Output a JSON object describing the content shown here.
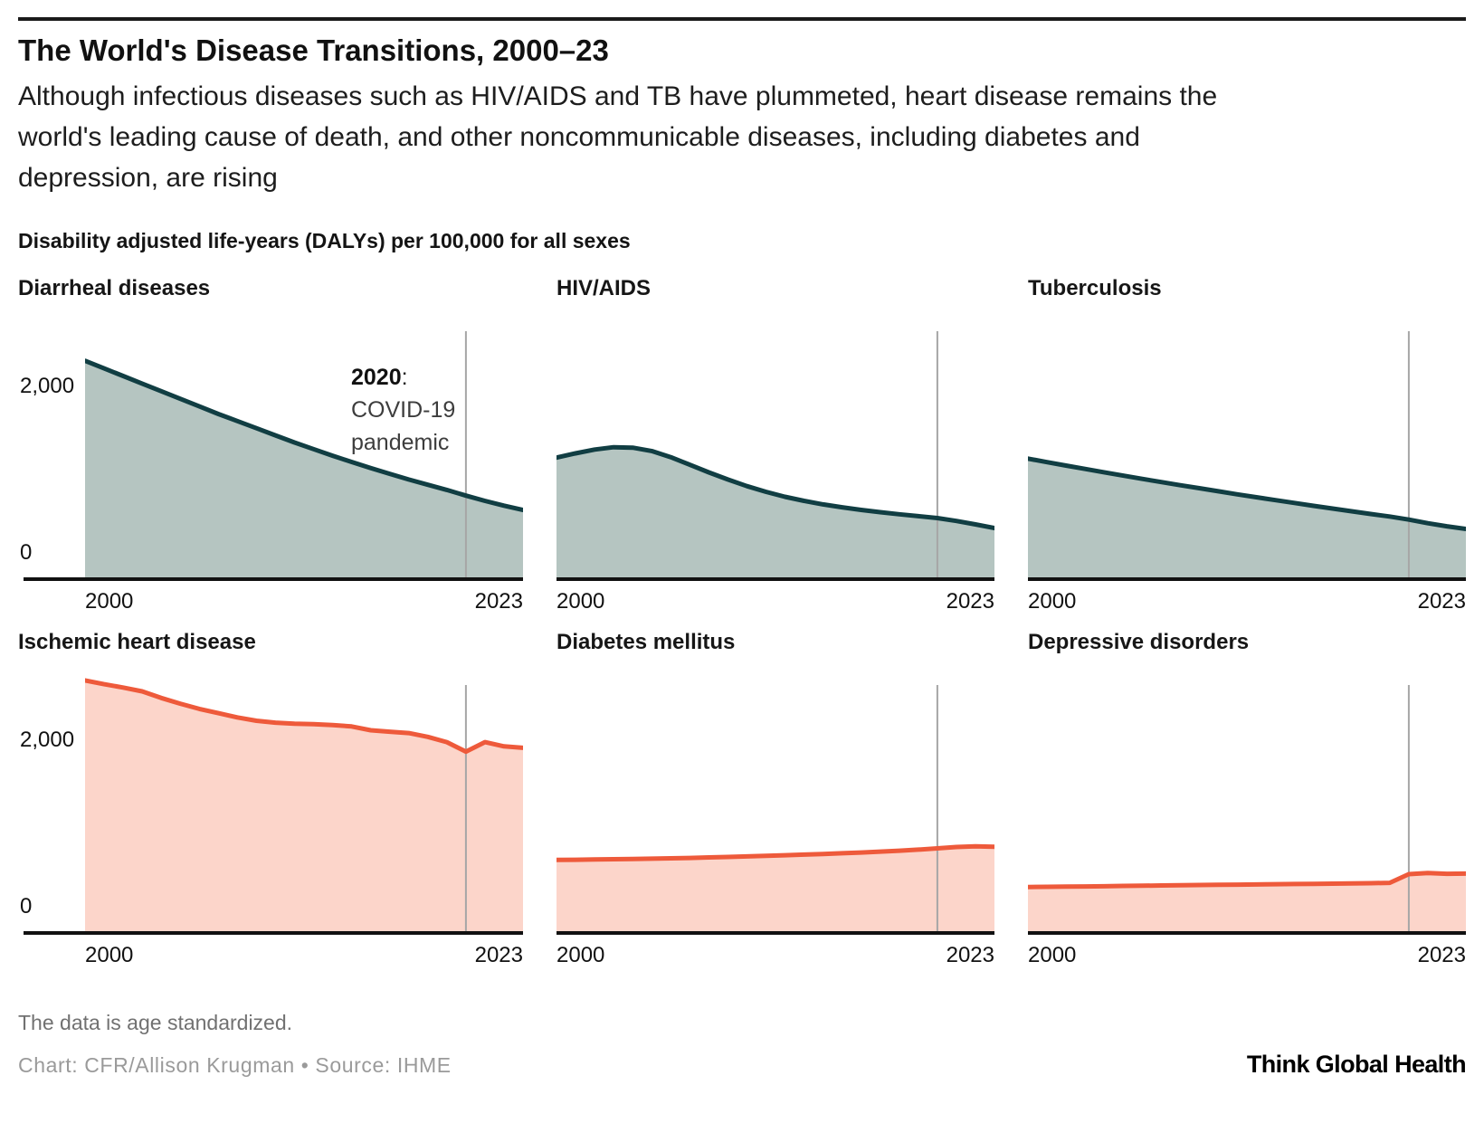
{
  "page": {
    "title": "The World's Disease Transitions, 2000–23",
    "subtitle_lines": [
      "Although infectious diseases such as HIV/AIDS and TB have plummeted, heart disease remains the",
      "world's leading cause of death, and other noncommunicable diseases, including diabetes and",
      "depression, are rising"
    ],
    "units_label": "Disability adjusted life-years (DALYs) per 100,000 for all sexes",
    "footnote": "The data is age standardized.",
    "credit": "Chart: CFR/Allison Krugman • Source: IHME",
    "brand": "Think Global Health"
  },
  "colors": {
    "infectious_line": "#113e43",
    "infectious_fill": "#b5c5c1",
    "ncd_line": "#ee5a3b",
    "ncd_fill": "#fcd5ca",
    "vline": "#a6a6a6",
    "axis": "#111111"
  },
  "annotation": {
    "year_bold": "2020",
    "colon": ":",
    "lines": [
      "COVID-19",
      "pandemic"
    ]
  },
  "axis": {
    "x_start_label": "2000",
    "x_end_label": "2023",
    "y_tick_labels": [
      "2,000",
      "0"
    ],
    "y_tick_values": [
      2000,
      0
    ]
  },
  "chart_data": [
    {
      "type": "area",
      "title": "Diarrheal diseases",
      "ylabel": "DALYs per 100,000",
      "xlim": [
        2000,
        2023
      ],
      "ylim": [
        0,
        2820
      ],
      "vline_year": 2020,
      "line_color": "#113e43",
      "fill_color": "#b5c5c1",
      "x": [
        2000,
        2001,
        2002,
        2003,
        2004,
        2005,
        2006,
        2007,
        2008,
        2009,
        2010,
        2011,
        2012,
        2013,
        2014,
        2015,
        2016,
        2017,
        2018,
        2019,
        2020,
        2021,
        2022,
        2023
      ],
      "values": [
        2280,
        2200,
        2120,
        2040,
        1960,
        1880,
        1800,
        1720,
        1645,
        1570,
        1495,
        1420,
        1350,
        1280,
        1215,
        1150,
        1090,
        1030,
        975,
        920,
        860,
        805,
        755,
        710
      ]
    },
    {
      "type": "area",
      "title": "HIV/AIDS",
      "ylabel": "DALYs per 100,000",
      "xlim": [
        2000,
        2023
      ],
      "ylim": [
        0,
        2820
      ],
      "vline_year": 2020,
      "line_color": "#113e43",
      "fill_color": "#b5c5c1",
      "x": [
        2000,
        2001,
        2002,
        2003,
        2004,
        2005,
        2006,
        2007,
        2008,
        2009,
        2010,
        2011,
        2012,
        2013,
        2014,
        2015,
        2016,
        2017,
        2018,
        2019,
        2020,
        2021,
        2022,
        2023
      ],
      "values": [
        1260,
        1305,
        1345,
        1370,
        1365,
        1330,
        1265,
        1185,
        1105,
        1030,
        960,
        900,
        848,
        805,
        768,
        737,
        710,
        686,
        664,
        644,
        624,
        594,
        557,
        518
      ]
    },
    {
      "type": "area",
      "title": "Tuberculosis",
      "ylabel": "DALYs per 100,000",
      "xlim": [
        2000,
        2023
      ],
      "ylim": [
        0,
        2820
      ],
      "vline_year": 2020,
      "line_color": "#113e43",
      "fill_color": "#b5c5c1",
      "x": [
        2000,
        2001,
        2002,
        2003,
        2004,
        2005,
        2006,
        2007,
        2008,
        2009,
        2010,
        2011,
        2012,
        2013,
        2014,
        2015,
        2016,
        2017,
        2018,
        2019,
        2020,
        2021,
        2022,
        2023
      ],
      "values": [
        1250,
        1213,
        1177,
        1141,
        1106,
        1071,
        1037,
        1003,
        970,
        938,
        906,
        874,
        843,
        813,
        783,
        753,
        724,
        695,
        667,
        640,
        608,
        570,
        537,
        510
      ]
    },
    {
      "type": "area",
      "title": "Ischemic heart disease",
      "ylabel": "DALYs per 100,000",
      "xlim": [
        2000,
        2023
      ],
      "ylim": [
        0,
        2820
      ],
      "vline_year": 2020,
      "line_color": "#ee5a3b",
      "fill_color": "#fcd5ca",
      "x": [
        2000,
        2001,
        2002,
        2003,
        2004,
        2005,
        2006,
        2007,
        2008,
        2009,
        2010,
        2011,
        2012,
        2013,
        2014,
        2015,
        2016,
        2017,
        2018,
        2019,
        2020,
        2021,
        2022,
        2023
      ],
      "values": [
        2640,
        2600,
        2565,
        2525,
        2455,
        2395,
        2340,
        2295,
        2250,
        2215,
        2195,
        2185,
        2180,
        2170,
        2155,
        2115,
        2100,
        2085,
        2045,
        1990,
        1890,
        1990,
        1945,
        1930
      ]
    },
    {
      "type": "area",
      "title": "Diabetes mellitus",
      "ylabel": "DALYs per 100,000",
      "xlim": [
        2000,
        2023
      ],
      "ylim": [
        0,
        2820
      ],
      "vline_year": 2020,
      "line_color": "#ee5a3b",
      "fill_color": "#fcd5ca",
      "x": [
        2000,
        2001,
        2002,
        2003,
        2004,
        2005,
        2006,
        2007,
        2008,
        2009,
        2010,
        2011,
        2012,
        2013,
        2014,
        2015,
        2016,
        2017,
        2018,
        2019,
        2020,
        2021,
        2022,
        2023
      ],
      "values": [
        750,
        752,
        755,
        757,
        760,
        763,
        767,
        771,
        776,
        781,
        787,
        793,
        799,
        806,
        813,
        820,
        828,
        837,
        847,
        858,
        872,
        886,
        893,
        889
      ]
    },
    {
      "type": "area",
      "title": "Depressive disorders",
      "ylabel": "DALYs per 100,000",
      "xlim": [
        2000,
        2023
      ],
      "ylim": [
        0,
        2820
      ],
      "vline_year": 2020,
      "line_color": "#ee5a3b",
      "fill_color": "#fcd5ca",
      "x": [
        2000,
        2001,
        2002,
        2003,
        2004,
        2005,
        2006,
        2007,
        2008,
        2009,
        2010,
        2011,
        2012,
        2013,
        2014,
        2015,
        2016,
        2017,
        2018,
        2019,
        2020,
        2021,
        2022,
        2023
      ],
      "values": [
        465,
        467,
        469,
        471,
        473,
        476,
        478,
        481,
        483,
        486,
        488,
        490,
        492,
        494,
        496,
        498,
        500,
        502,
        505,
        509,
        600,
        612,
        604,
        606
      ]
    }
  ]
}
